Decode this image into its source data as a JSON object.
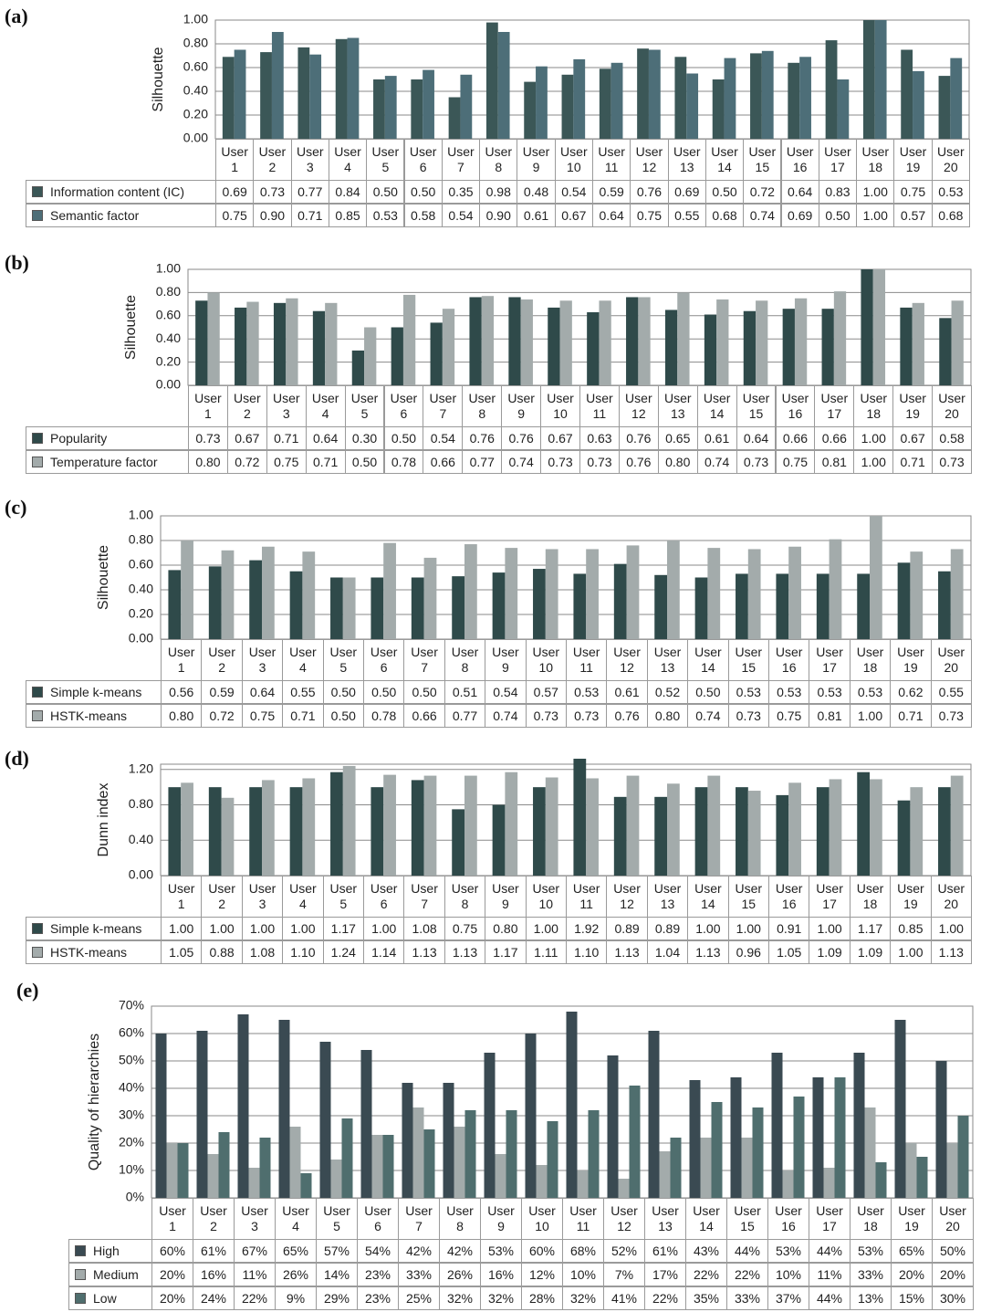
{
  "chart_data": [
    {
      "type": "bar",
      "title": "(a)",
      "ylabel": "Silhouette",
      "categories": [
        "User 1",
        "User 2",
        "User 3",
        "User 4",
        "User 5",
        "User 6",
        "User 7",
        "User 8",
        "User 9",
        "User 10",
        "User 11",
        "User 12",
        "User 13",
        "User 14",
        "User 15",
        "User 16",
        "User 17",
        "User 18",
        "User 19",
        "User 20"
      ],
      "ylim": [
        0,
        1
      ],
      "yticks": [
        {
          "value": 0,
          "label": "0.00"
        },
        {
          "value": 0.2,
          "label": "0.20"
        },
        {
          "value": 0.4,
          "label": "0.40"
        },
        {
          "value": 0.6,
          "label": "0.60"
        },
        {
          "value": 0.8,
          "label": "0.80"
        },
        {
          "value": 1,
          "label": "1.00"
        }
      ],
      "grid": true,
      "series": [
        {
          "name": "Information content (IC)",
          "color": "#3b5757",
          "values": [
            0.69,
            0.73,
            0.77,
            0.84,
            0.5,
            0.5,
            0.35,
            0.98,
            0.48,
            0.54,
            0.59,
            0.76,
            0.69,
            0.5,
            0.72,
            0.64,
            0.83,
            1,
            0.75,
            0.53
          ],
          "value_labels": [
            "0.69",
            "0.73",
            "0.77",
            "0.84",
            "0.50",
            "0.50",
            "0.35",
            "0.98",
            "0.48",
            "0.54",
            "0.59",
            "0.76",
            "0.69",
            "0.50",
            "0.72",
            "0.64",
            "0.83",
            "1.00",
            "0.75",
            "0.53"
          ]
        },
        {
          "name": "Semantic factor",
          "color": "#4d6e78",
          "values": [
            0.75,
            0.9,
            0.71,
            0.85,
            0.53,
            0.58,
            0.54,
            0.9,
            0.61,
            0.67,
            0.64,
            0.75,
            0.55,
            0.68,
            0.74,
            0.69,
            0.5,
            1,
            0.57,
            0.68
          ],
          "value_labels": [
            "0.75",
            "0.90",
            "0.71",
            "0.85",
            "0.53",
            "0.58",
            "0.54",
            "0.90",
            "0.61",
            "0.67",
            "0.64",
            "0.75",
            "0.55",
            "0.68",
            "0.74",
            "0.69",
            "0.50",
            "1.00",
            "0.57",
            "0.68"
          ]
        }
      ]
    },
    {
      "type": "bar",
      "title": "(b)",
      "ylabel": "Silhouette",
      "categories": [
        "User 1",
        "User 2",
        "User 3",
        "User 4",
        "User 5",
        "User 6",
        "User 7",
        "User 8",
        "User 9",
        "User 10",
        "User 11",
        "User 12",
        "User 13",
        "User 14",
        "User 15",
        "User 16",
        "User 17",
        "User 18",
        "User 19",
        "User 20"
      ],
      "ylim": [
        0,
        1
      ],
      "yticks": [
        {
          "value": 0,
          "label": "0.00"
        },
        {
          "value": 0.2,
          "label": "0.20"
        },
        {
          "value": 0.4,
          "label": "0.40"
        },
        {
          "value": 0.6,
          "label": "0.60"
        },
        {
          "value": 0.8,
          "label": "0.80"
        },
        {
          "value": 1,
          "label": "1.00"
        }
      ],
      "grid": true,
      "series": [
        {
          "name": "Popularity",
          "color": "#2f4a4a",
          "values": [
            0.73,
            0.67,
            0.71,
            0.64,
            0.3,
            0.5,
            0.54,
            0.76,
            0.76,
            0.67,
            0.63,
            0.76,
            0.65,
            0.61,
            0.64,
            0.66,
            0.66,
            1,
            0.67,
            0.58
          ],
          "value_labels": [
            "0.73",
            "0.67",
            "0.71",
            "0.64",
            "0.30",
            "0.50",
            "0.54",
            "0.76",
            "0.76",
            "0.67",
            "0.63",
            "0.76",
            "0.65",
            "0.61",
            "0.64",
            "0.66",
            "0.66",
            "1.00",
            "0.67",
            "0.58"
          ]
        },
        {
          "name": "Temperature factor",
          "color": "#a3abab",
          "values": [
            0.8,
            0.72,
            0.75,
            0.71,
            0.5,
            0.78,
            0.66,
            0.77,
            0.74,
            0.73,
            0.73,
            0.76,
            0.8,
            0.74,
            0.73,
            0.75,
            0.81,
            1,
            0.71,
            0.73
          ],
          "value_labels": [
            "0.80",
            "0.72",
            "0.75",
            "0.71",
            "0.50",
            "0.78",
            "0.66",
            "0.77",
            "0.74",
            "0.73",
            "0.73",
            "0.76",
            "0.80",
            "0.74",
            "0.73",
            "0.75",
            "0.81",
            "1.00",
            "0.71",
            "0.73"
          ]
        }
      ]
    },
    {
      "type": "bar",
      "title": "(c)",
      "ylabel": "Silhouette",
      "categories": [
        "User 1",
        "User 2",
        "User 3",
        "User 4",
        "User 5",
        "User 6",
        "User 7",
        "User 8",
        "User 9",
        "User 10",
        "User 11",
        "User 12",
        "User 13",
        "User 14",
        "User 15",
        "User 16",
        "User 17",
        "User 18",
        "User 19",
        "User 20"
      ],
      "ylim": [
        0,
        1
      ],
      "yticks": [
        {
          "value": 0,
          "label": "0.00"
        },
        {
          "value": 0.2,
          "label": "0.20"
        },
        {
          "value": 0.4,
          "label": "0.40"
        },
        {
          "value": 0.6,
          "label": "0.60"
        },
        {
          "value": 0.8,
          "label": "0.80"
        },
        {
          "value": 1,
          "label": "1.00"
        }
      ],
      "grid": true,
      "series": [
        {
          "name": "Simple k-means",
          "color": "#2f4a4a",
          "values": [
            0.56,
            0.59,
            0.64,
            0.55,
            0.5,
            0.5,
            0.5,
            0.51,
            0.54,
            0.57,
            0.53,
            0.61,
            0.52,
            0.5,
            0.53,
            0.53,
            0.53,
            0.53,
            0.62,
            0.55
          ],
          "value_labels": [
            "0.56",
            "0.59",
            "0.64",
            "0.55",
            "0.50",
            "0.50",
            "0.50",
            "0.51",
            "0.54",
            "0.57",
            "0.53",
            "0.61",
            "0.52",
            "0.50",
            "0.53",
            "0.53",
            "0.53",
            "0.53",
            "0.62",
            "0.55"
          ]
        },
        {
          "name": "HSTK-means",
          "color": "#a3abab",
          "values": [
            0.8,
            0.72,
            0.75,
            0.71,
            0.5,
            0.78,
            0.66,
            0.77,
            0.74,
            0.73,
            0.73,
            0.76,
            0.8,
            0.74,
            0.73,
            0.75,
            0.81,
            1,
            0.71,
            0.73
          ],
          "value_labels": [
            "0.80",
            "0.72",
            "0.75",
            "0.71",
            "0.50",
            "0.78",
            "0.66",
            "0.77",
            "0.74",
            "0.73",
            "0.73",
            "0.76",
            "0.80",
            "0.74",
            "0.73",
            "0.75",
            "0.81",
            "1.00",
            "0.71",
            "0.73"
          ]
        }
      ]
    },
    {
      "type": "bar",
      "title": "(d)",
      "ylabel": "Dunn index",
      "categories": [
        "User 1",
        "User 2",
        "User 3",
        "User 4",
        "User 5",
        "User 6",
        "User 7",
        "User 8",
        "User 9",
        "User 10",
        "User 11",
        "User 12",
        "User 13",
        "User 14",
        "User 15",
        "User 16",
        "User 17",
        "User 18",
        "User 19",
        "User 20"
      ],
      "ylim": [
        0,
        1.26
      ],
      "yticks": [
        {
          "value": 0,
          "label": "0.00"
        },
        {
          "value": 0.4,
          "label": "0.40"
        },
        {
          "value": 0.8,
          "label": "0.80"
        },
        {
          "value": 1.2,
          "label": "1.20"
        }
      ],
      "grid": true,
      "series": [
        {
          "name": "Simple k-means",
          "color": "#2f4a4a",
          "values": [
            1,
            1,
            1,
            1,
            1.17,
            1,
            1.08,
            0.75,
            0.8,
            1,
            1.92,
            0.89,
            0.89,
            1,
            1,
            0.91,
            1,
            1.17,
            0.85,
            1
          ],
          "value_labels": [
            "1.00",
            "1.00",
            "1.00",
            "1.00",
            "1.17",
            "1.00",
            "1.08",
            "0.75",
            "0.80",
            "1.00",
            "1.92",
            "0.89",
            "0.89",
            "1.00",
            "1.00",
            "0.91",
            "1.00",
            "1.17",
            "0.85",
            "1.00"
          ]
        },
        {
          "name": "HSTK-means",
          "color": "#a3abab",
          "values": [
            1.05,
            0.88,
            1.08,
            1.1,
            1.24,
            1.14,
            1.13,
            1.13,
            1.17,
            1.11,
            1.1,
            1.13,
            1.04,
            1.13,
            0.96,
            1.05,
            1.09,
            1.09,
            1,
            1.13
          ],
          "value_labels": [
            "1.05",
            "0.88",
            "1.08",
            "1.10",
            "1.24",
            "1.14",
            "1.13",
            "1.13",
            "1.17",
            "1.11",
            "1.10",
            "1.13",
            "1.04",
            "1.13",
            "0.96",
            "1.05",
            "1.09",
            "1.09",
            "1.00",
            "1.13"
          ]
        }
      ]
    },
    {
      "type": "bar",
      "title": "(e)",
      "ylabel": "Quality of hierarchies",
      "categories": [
        "User 1",
        "User 2",
        "User 3",
        "User 4",
        "User 5",
        "User 6",
        "User 7",
        "User 8",
        "User 9",
        "User 10",
        "User 11",
        "User 12",
        "User 13",
        "User 14",
        "User 15",
        "User 16",
        "User 17",
        "User 18",
        "User 19",
        "User 20"
      ],
      "ylim": [
        0,
        70
      ],
      "yticks": [
        {
          "value": 0,
          "label": "0%"
        },
        {
          "value": 10,
          "label": "10%"
        },
        {
          "value": 20,
          "label": "20%"
        },
        {
          "value": 30,
          "label": "30%"
        },
        {
          "value": 40,
          "label": "40%"
        },
        {
          "value": 50,
          "label": "50%"
        },
        {
          "value": 60,
          "label": "60%"
        },
        {
          "value": 70,
          "label": "70%"
        }
      ],
      "grid": true,
      "series": [
        {
          "name": "High",
          "color": "#3a4a52",
          "values": [
            60,
            61,
            67,
            65,
            57,
            54,
            42,
            42,
            53,
            60,
            68,
            52,
            61,
            43,
            44,
            53,
            44,
            53,
            65,
            50
          ],
          "value_labels": [
            "60%",
            "61%",
            "67%",
            "65%",
            "57%",
            "54%",
            "42%",
            "42%",
            "53%",
            "60%",
            "68%",
            "52%",
            "61%",
            "43%",
            "44%",
            "53%",
            "44%",
            "53%",
            "65%",
            "50%"
          ]
        },
        {
          "name": "Medium",
          "color": "#a3abab",
          "values": [
            20,
            16,
            11,
            26,
            14,
            23,
            33,
            26,
            16,
            12,
            10,
            7,
            17,
            22,
            22,
            10,
            11,
            33,
            20,
            20
          ],
          "value_labels": [
            "20%",
            "16%",
            "11%",
            "26%",
            "14%",
            "23%",
            "33%",
            "26%",
            "16%",
            "12%",
            "10%",
            "7%",
            "17%",
            "22%",
            "22%",
            "10%",
            "11%",
            "33%",
            "20%",
            "20%"
          ]
        },
        {
          "name": "Low",
          "color": "#4f6e6e",
          "values": [
            20,
            24,
            22,
            9,
            29,
            23,
            25,
            32,
            32,
            28,
            32,
            41,
            22,
            35,
            33,
            37,
            44,
            13,
            15,
            30
          ],
          "value_labels": [
            "20%",
            "24%",
            "22%",
            "9%",
            "29%",
            "23%",
            "25%",
            "32%",
            "32%",
            "28%",
            "32%",
            "41%",
            "22%",
            "35%",
            "33%",
            "37%",
            "44%",
            "13%",
            "15%",
            "30%"
          ]
        }
      ]
    }
  ]
}
